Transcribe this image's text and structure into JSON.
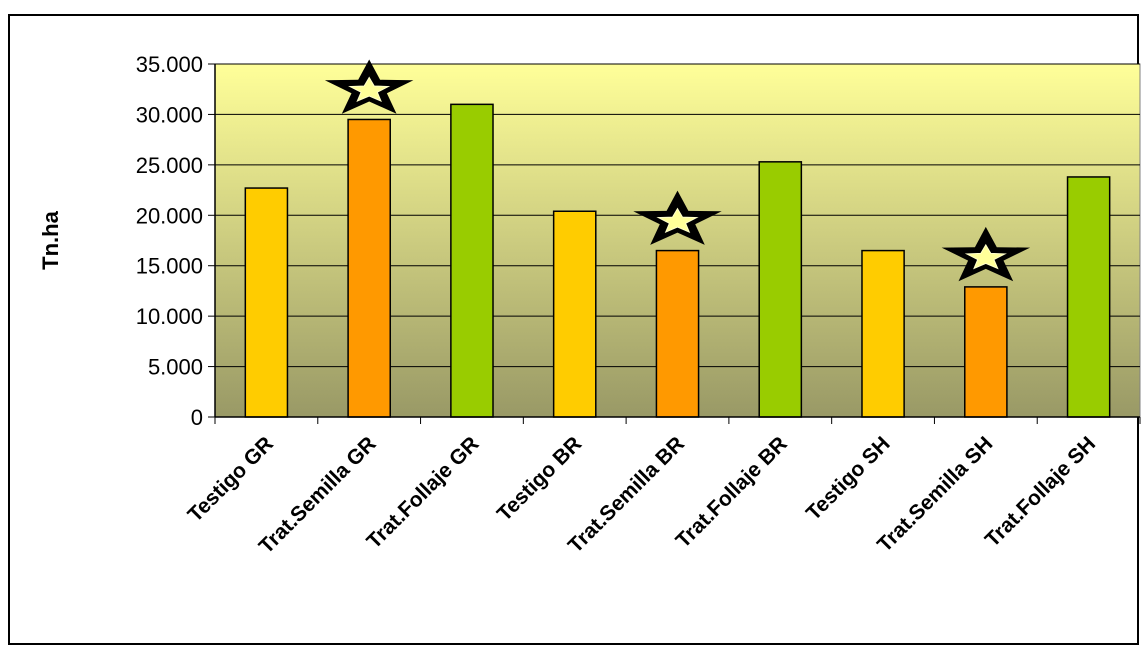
{
  "chart_data": {
    "type": "bar",
    "title": "",
    "xlabel": "",
    "ylabel": "Tn.ha",
    "ylim": [
      0,
      35000
    ],
    "yticks": [
      0,
      5000,
      10000,
      15000,
      20000,
      25000,
      30000,
      35000
    ],
    "ytick_labels": [
      "0",
      "5.000",
      "10.000",
      "15.000",
      "20.000",
      "25.000",
      "30.000",
      "35.000"
    ],
    "grid": true,
    "categories": [
      "Testigo GR",
      "Trat.Semilla GR",
      "Trat.Follaje GR",
      "Testigo BR",
      "Trat.Semilla BR",
      "Trat.Follaje BR",
      "Testigo SH",
      "Trat.Semilla SH",
      "Trat.Follaje SH"
    ],
    "values": [
      22700,
      29500,
      31000,
      20400,
      16500,
      25300,
      16500,
      12900,
      23800
    ],
    "bar_colors": [
      "#ffcc00",
      "#ff9900",
      "#99cc00",
      "#ffcc00",
      "#ff9900",
      "#99cc00",
      "#ffcc00",
      "#ff9900",
      "#99cc00"
    ],
    "star_markers": [
      1,
      4,
      7
    ],
    "plot_background": [
      "#ffff99",
      "#999966"
    ]
  }
}
